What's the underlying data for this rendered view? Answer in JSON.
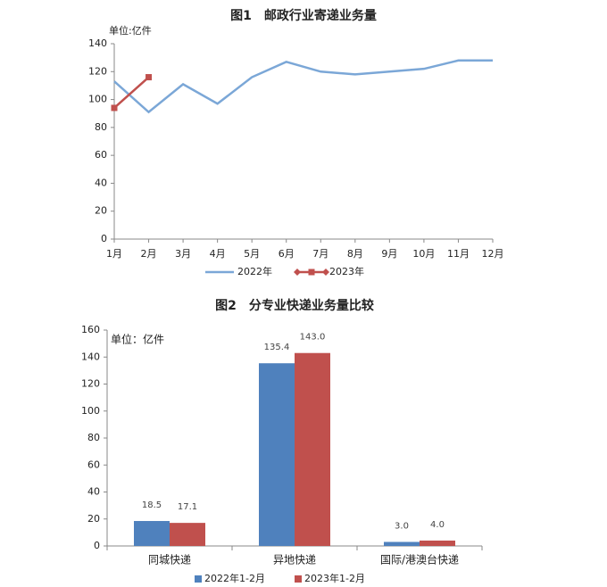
{
  "chart_data": [
    {
      "type": "line",
      "title": "图1　邮政行业寄递业务量",
      "unit_label": "单位:亿件",
      "categories": [
        "1月",
        "2月",
        "3月",
        "4月",
        "5月",
        "6月",
        "7月",
        "8月",
        "9月",
        "10月",
        "11月",
        "12月"
      ],
      "series": [
        {
          "name": "2022年",
          "color": "#7ba7d7",
          "values": [
            113,
            91,
            111,
            97,
            116,
            127,
            120,
            118,
            120,
            122,
            128,
            128
          ]
        },
        {
          "name": "2023年",
          "color": "#c0504d",
          "values": [
            94,
            116,
            null,
            null,
            null,
            null,
            null,
            null,
            null,
            null,
            null,
            null
          ]
        }
      ],
      "ylim": [
        0,
        140
      ],
      "yticks": [
        0,
        20,
        40,
        60,
        80,
        100,
        120,
        140
      ]
    },
    {
      "type": "bar",
      "title": "图2　分专业快递业务量比较",
      "unit_label": "单位：亿件",
      "categories": [
        "同城快递",
        "异地快递",
        "国际/港澳台快递"
      ],
      "series": [
        {
          "name": "2022年1-2月",
          "color": "#4f81bd",
          "values": [
            18.5,
            135.4,
            3.0
          ],
          "value_labels": [
            "18.5",
            "135.4",
            "3.0"
          ]
        },
        {
          "name": "2023年1-2月",
          "color": "#c0504d",
          "values": [
            17.1,
            143.0,
            4.0
          ],
          "value_labels": [
            "17.1",
            "143.0",
            "4.0"
          ]
        }
      ],
      "ylim": [
        0,
        160
      ],
      "yticks": [
        0,
        20,
        40,
        60,
        80,
        100,
        120,
        140,
        160
      ]
    }
  ]
}
